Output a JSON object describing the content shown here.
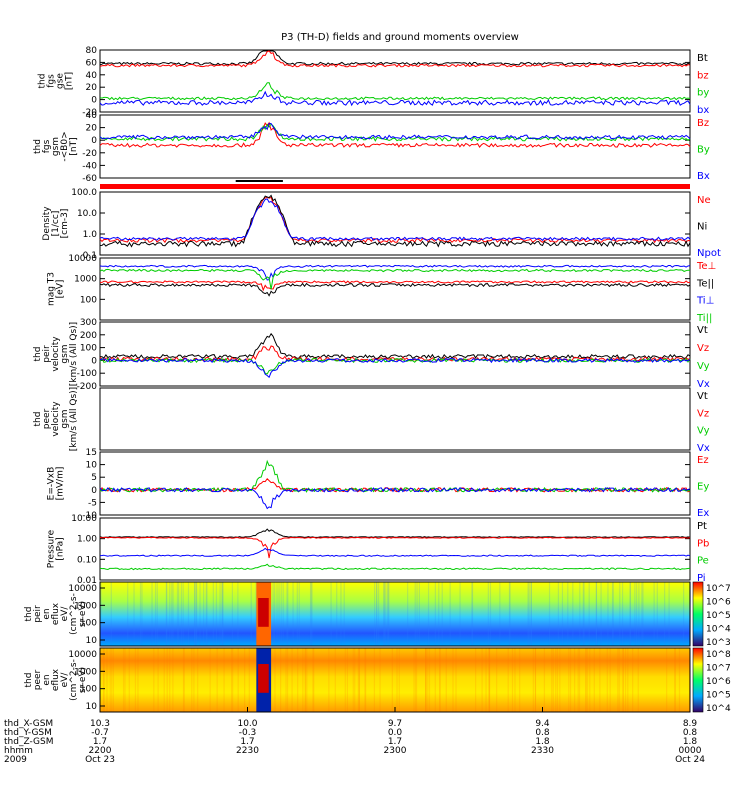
{
  "title": "P3 (TH-D) fields and ground moments overview",
  "chart_data": {
    "type": "line",
    "x_axis": {
      "rows": [
        {
          "label": "thd_X-GSM",
          "values": [
            "10.3",
            "10.0",
            "9.7",
            "9.4",
            "8.9"
          ]
        },
        {
          "label": "thd_Y-GSM",
          "values": [
            "-0.7",
            "-0.3",
            "0.0",
            "0.8",
            "0.8"
          ]
        },
        {
          "label": "thd_Z-GSM",
          "values": [
            "1.7",
            "1.7",
            "1.7",
            "1.8",
            "1.8"
          ]
        },
        {
          "label": "hhmm",
          "values": [
            "2200",
            "2230",
            "2300",
            "2330",
            "0000"
          ]
        },
        {
          "label": "2009",
          "values": [
            "Oct 23",
            "",
            "",
            "",
            "Oct 24"
          ]
        }
      ],
      "tick_fractions": [
        0,
        0.25,
        0.5,
        0.75,
        1.0
      ]
    },
    "panels": [
      {
        "id": "fgs_gse",
        "ylabel": [
          "thd",
          "fgs",
          "gse",
          "[nT]"
        ],
        "ylim": [
          -20,
          80
        ],
        "ticks": [
          "80",
          "60",
          "40",
          "20",
          "0",
          "-20"
        ],
        "series": [
          {
            "name": "Bt",
            "color": "#000000",
            "base": 58,
            "amp": 2,
            "event": 45
          },
          {
            "name": "bz",
            "color": "#ff0000",
            "base": 55,
            "amp": 2,
            "event": 30
          },
          {
            "name": "by",
            "color": "#00cc00",
            "base": 2,
            "amp": 2,
            "event": 25
          },
          {
            "name": "bx",
            "color": "#0000ff",
            "base": -5,
            "amp": 4,
            "event": 20
          }
        ]
      },
      {
        "id": "fgs_gsm",
        "ylabel": [
          "thd",
          "fgs",
          "gsm",
          "-<B0>",
          "[nT]"
        ],
        "ylim": [
          -60,
          40
        ],
        "ticks": [
          "40",
          "20",
          "0",
          "-20",
          "-40",
          "-60"
        ],
        "series": [
          {
            "name": "Bz",
            "color": "#ff0000",
            "base": -8,
            "amp": 3,
            "event": 40
          },
          {
            "name": "By",
            "color": "#00cc00",
            "base": 2,
            "amp": 3,
            "event": 30
          },
          {
            "name": "Bx",
            "color": "#0000ff",
            "base": 5,
            "amp": 3,
            "event": 25
          }
        ]
      },
      {
        "id": "density",
        "ylabel": [
          "Density",
          "[1/cc]",
          "[cm-3]"
        ],
        "ylim": [
          0.1,
          100
        ],
        "log": true,
        "ticks": [
          "100.0",
          "10.0",
          "1.0",
          "0.1"
        ],
        "series": [
          {
            "name": "Ne",
            "color": "#ff0000",
            "base": 0.5,
            "amp": 0.1,
            "event": 60
          },
          {
            "name": "Ni",
            "color": "#000000",
            "base": 0.35,
            "amp": 0.1,
            "event": 80
          },
          {
            "name": "Npot",
            "color": "#0000ff",
            "base": 0.6,
            "amp": 0.1,
            "event": 50
          }
        ]
      },
      {
        "id": "temperature",
        "ylabel": [
          "mag T3",
          "[eV]"
        ],
        "ylim": [
          10,
          10000
        ],
        "log": true,
        "ticks": [
          "10000",
          "1000",
          "100"
        ],
        "series": [
          {
            "name": "Te⊥",
            "color": "#ff0000",
            "base": 700,
            "amp": 80,
            "event": -500
          },
          {
            "name": "Te||",
            "color": "#000000",
            "base": 500,
            "amp": 80,
            "event": -400
          },
          {
            "name": "Ti⊥",
            "color": "#0000ff",
            "base": 4000,
            "amp": 400,
            "event": -3500
          },
          {
            "name": "Ti||",
            "color": "#00cc00",
            "base": 2500,
            "amp": 300,
            "event": -2300
          }
        ]
      },
      {
        "id": "peir_velocity",
        "ylabel": [
          "thd",
          "peir",
          "velocity",
          "gsm",
          "[km/s (All Qs)]"
        ],
        "ylim": [
          -200,
          300
        ],
        "ticks": [
          "300",
          "200",
          "100",
          "0",
          "-100",
          "-200"
        ],
        "series": [
          {
            "name": "Vt",
            "color": "#000000",
            "base": 30,
            "amp": 15,
            "event": 220
          },
          {
            "name": "Vz",
            "color": "#ff0000",
            "base": 10,
            "amp": 15,
            "event": 120
          },
          {
            "name": "Vy",
            "color": "#00cc00",
            "base": 0,
            "amp": 15,
            "event": -100
          },
          {
            "name": "Vx",
            "color": "#0000ff",
            "base": 0,
            "amp": 15,
            "event": -150
          }
        ]
      },
      {
        "id": "peer_velocity",
        "ylabel": [
          "thd",
          "peer",
          "velocity",
          "gsm",
          "[km/s (All Qs)]"
        ],
        "ylim": [
          -200,
          300
        ],
        "ticks": [],
        "series": [
          {
            "name": "Vt",
            "color": "#000000",
            "empty": true
          },
          {
            "name": "Vz",
            "color": "#ff0000",
            "empty": true
          },
          {
            "name": "Vy",
            "color": "#00cc00",
            "empty": true
          },
          {
            "name": "Vx",
            "color": "#0000ff",
            "empty": true
          }
        ]
      },
      {
        "id": "efield",
        "ylabel": [
          "E=-VxB",
          "[mV/m]"
        ],
        "ylim": [
          -10,
          15
        ],
        "ticks": [
          "15",
          "10",
          "5",
          "0",
          "-5",
          "-10"
        ],
        "series": [
          {
            "name": "Ez",
            "color": "#ff0000",
            "base": 0,
            "amp": 0.8,
            "event": 5
          },
          {
            "name": "Ey",
            "color": "#00cc00",
            "base": 0,
            "amp": 0.8,
            "event": 12
          },
          {
            "name": "Ex",
            "color": "#0000ff",
            "base": 0,
            "amp": 0.8,
            "event": -8
          }
        ]
      },
      {
        "id": "pressure",
        "ylabel": [
          "Pressure",
          "[nPa]"
        ],
        "ylim": [
          0.01,
          10
        ],
        "log": true,
        "ticks": [
          "10.00",
          "1.00",
          "0.10",
          "0.01"
        ],
        "series": [
          {
            "name": "Pt",
            "color": "#000000",
            "base": 1.2,
            "amp": 0.05,
            "event": 1.8
          },
          {
            "name": "Pb",
            "color": "#ff0000",
            "base": 1.1,
            "amp": 0.05,
            "event": -1.0
          },
          {
            "name": "Pe",
            "color": "#00cc00",
            "base": 0.035,
            "amp": 0.003,
            "event": 0.02
          },
          {
            "name": "Pi",
            "color": "#0000ff",
            "base": 0.15,
            "amp": 0.01,
            "event": 0.2
          }
        ]
      },
      {
        "id": "peir_spectrogram",
        "type": "heatmap",
        "ylabel": [
          "thd",
          "peir",
          "en",
          "eflux",
          "eV/",
          "(cm^2-s-",
          "sr-eV)"
        ],
        "ticks": [
          "10000",
          "1000",
          "100",
          "10"
        ],
        "colorbar": {
          "ticks": [
            "10^7",
            "10^6",
            "10^5",
            "10^4",
            "10^3"
          ]
        }
      },
      {
        "id": "peer_spectrogram",
        "type": "heatmap",
        "ylabel": [
          "thd",
          "peer",
          "en",
          "eflux",
          "eV/",
          "(cm^2-s-",
          "sr-eV)"
        ],
        "ticks": [
          "10000",
          "1000",
          "100",
          "10"
        ],
        "colorbar": {
          "ticks": [
            "10^8",
            "10^7",
            "10^6",
            "10^5",
            "10^4"
          ]
        }
      }
    ]
  }
}
